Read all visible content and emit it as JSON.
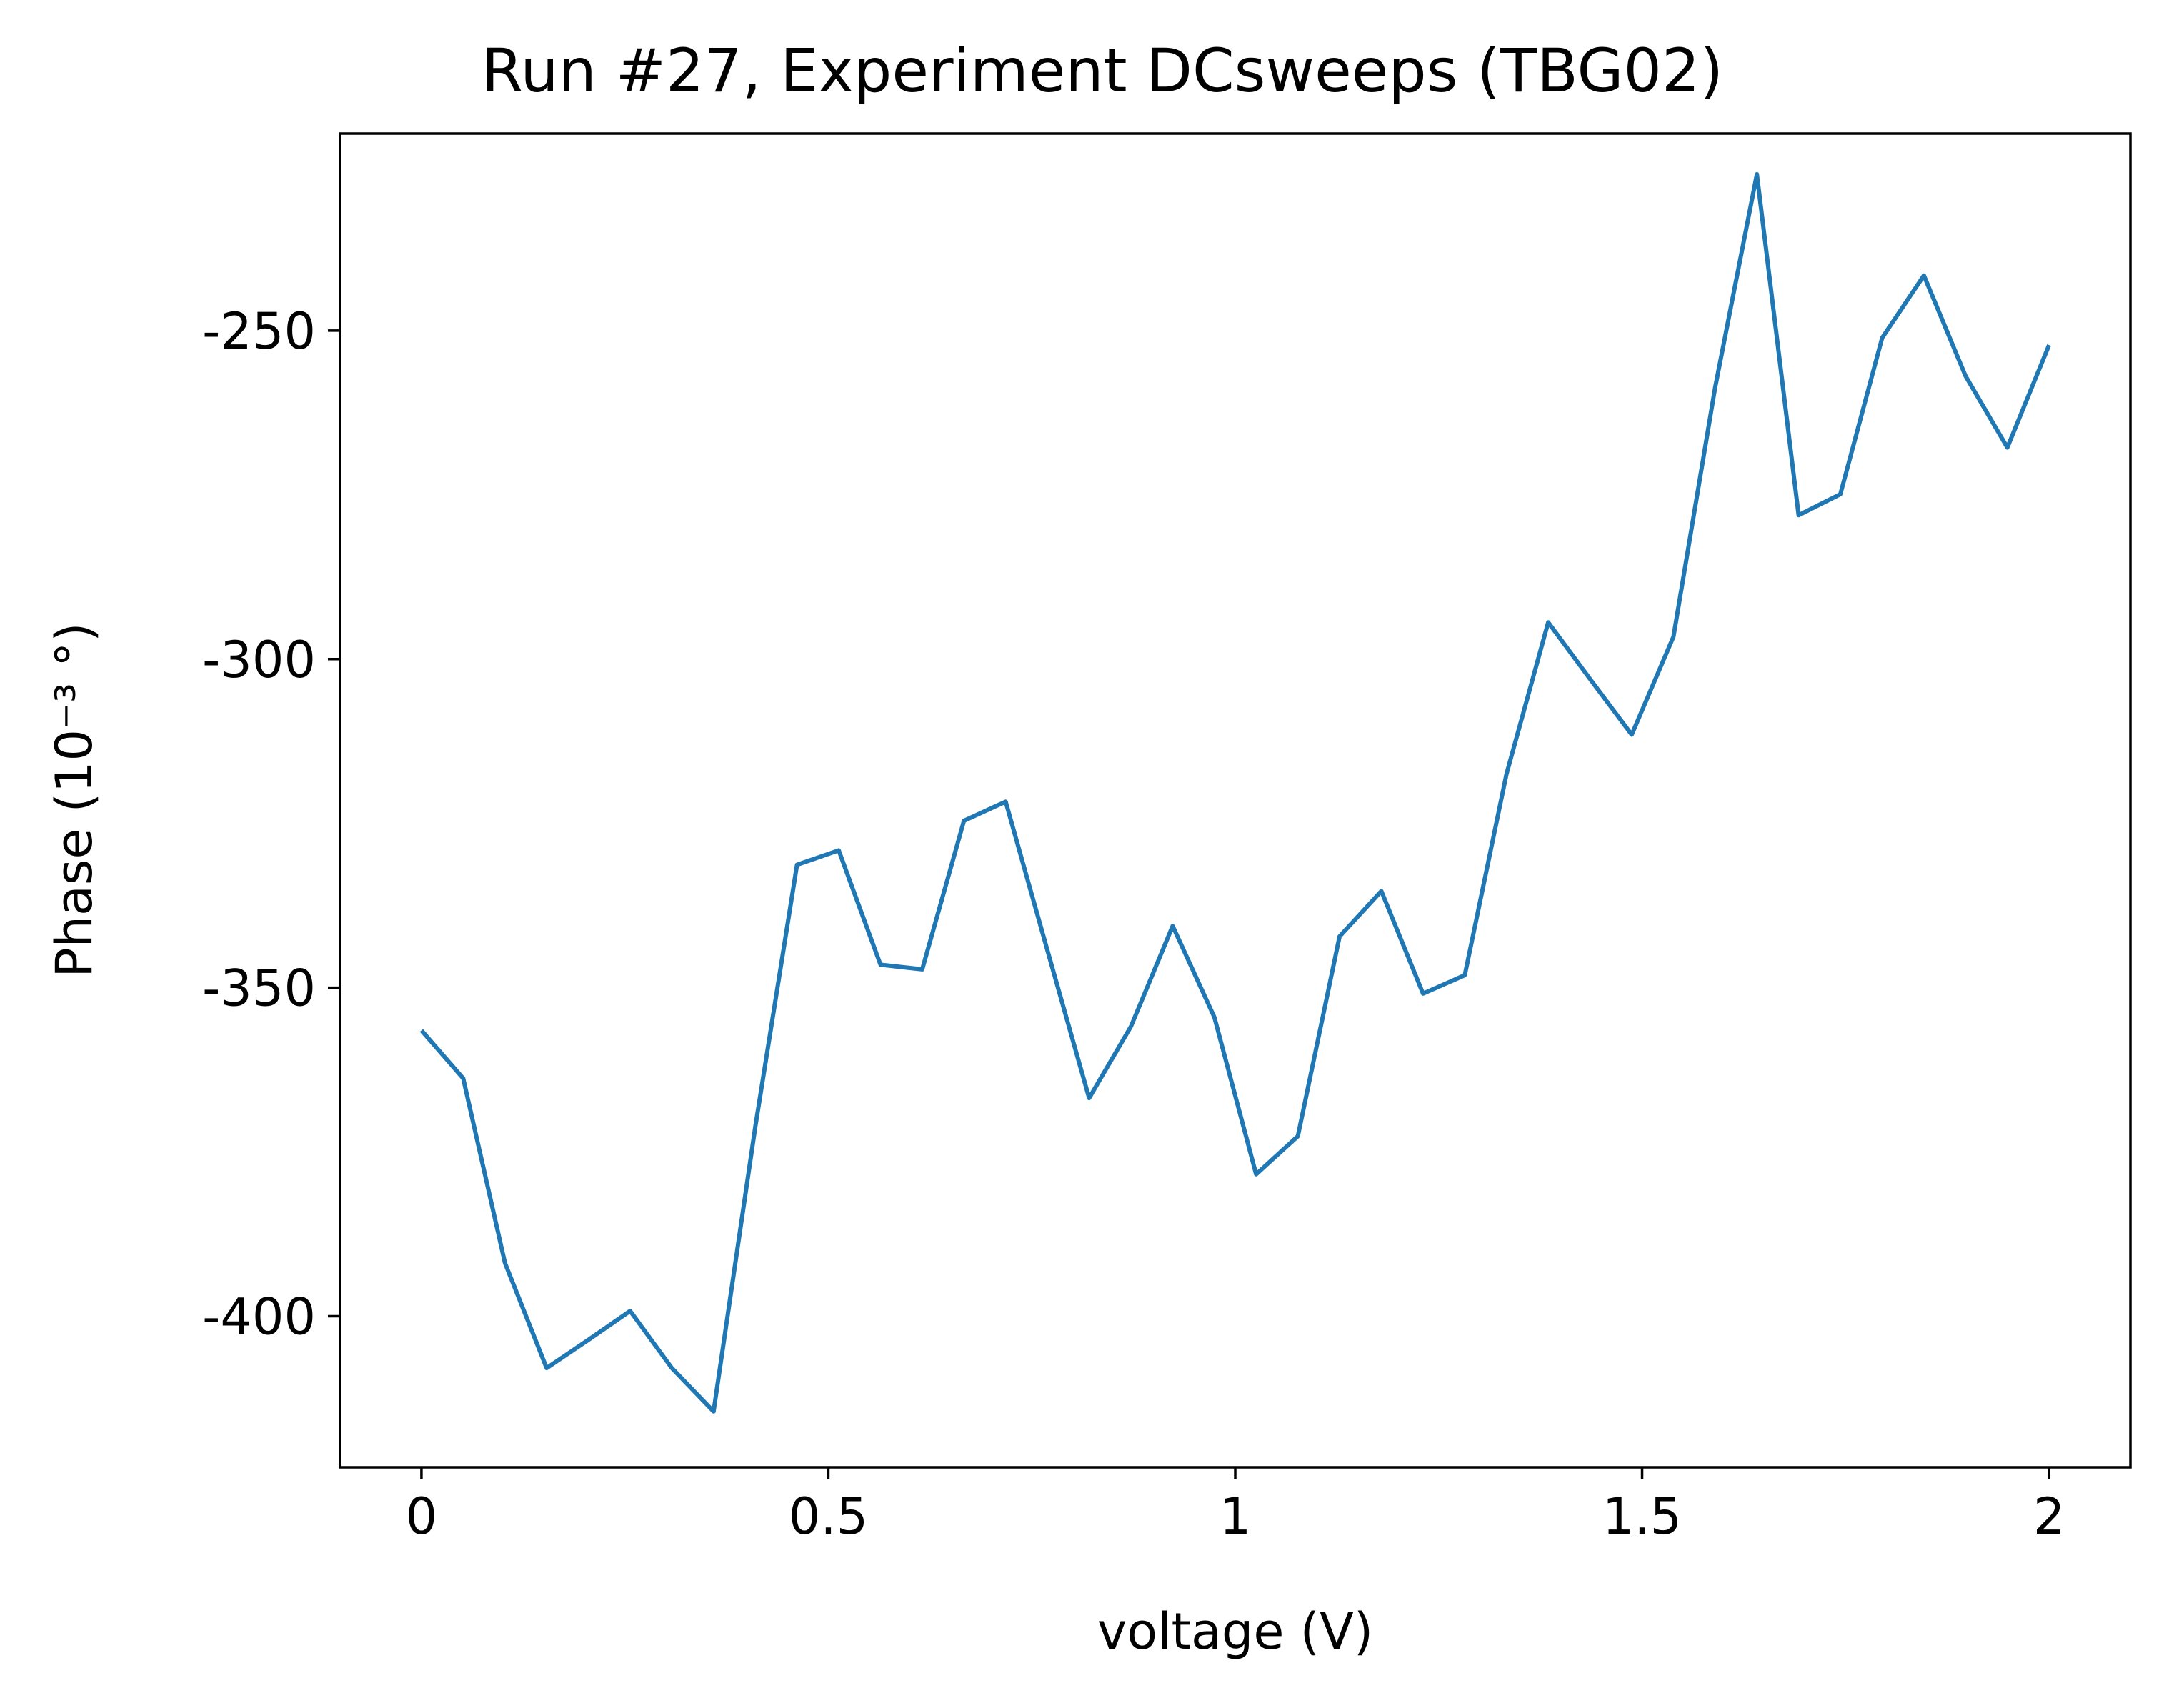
{
  "chart_data": {
    "type": "line",
    "title": "Run #27, Experiment DCsweeps (TBG02)",
    "xlabel": "voltage (V)",
    "ylabel": "Phase (10⁻³ °)",
    "xlim": [
      -0.1,
      2.1
    ],
    "ylim": [
      -423,
      -220
    ],
    "x_ticks": [
      0,
      0.5,
      1,
      1.5,
      2
    ],
    "x_tick_labels": [
      "0",
      "0.5",
      "1",
      "1.5",
      "2"
    ],
    "y_ticks": [
      -250,
      -300,
      -350,
      -400
    ],
    "y_tick_labels": [
      "-250",
      "-300",
      "-350",
      "-400"
    ],
    "grid": false,
    "line_color": "#1f77b4",
    "series": [
      {
        "x": [
          0,
          0.0513,
          0.1026,
          0.1538,
          0.2051,
          0.2564,
          0.3077,
          0.359,
          0.4103,
          0.4615,
          0.5128,
          0.5641,
          0.6154,
          0.6667,
          0.7179,
          0.7692,
          0.8205,
          0.8718,
          0.9231,
          0.9744,
          1.0256,
          1.0769,
          1.1282,
          1.1795,
          1.2308,
          1.2821,
          1.3333,
          1.3846,
          1.4359,
          1.4872,
          1.5385,
          1.5897,
          1.641,
          1.6923,
          1.7436,
          1.7949,
          1.8462,
          1.8974,
          1.9487,
          2.0
        ],
        "y": [
          -356.5,
          -363.8,
          -391.9,
          -407.9,
          -403.6,
          -399.2,
          -407.9,
          -414.5,
          -371.1,
          -331.3,
          -329.1,
          -346.5,
          -347.2,
          -324.6,
          -321.7,
          -344.3,
          -366.8,
          -355.9,
          -340.6,
          -354.5,
          -378.4,
          -372.6,
          -342.2,
          -335.3,
          -350.9,
          -348.1,
          -317.5,
          -294.4,
          -303.0,
          -311.5,
          -296.6,
          -258.7,
          -226.2,
          -278.1,
          -274.9,
          -251.1,
          -241.6,
          -256.9,
          -267.8,
          -252.2
        ]
      }
    ]
  }
}
